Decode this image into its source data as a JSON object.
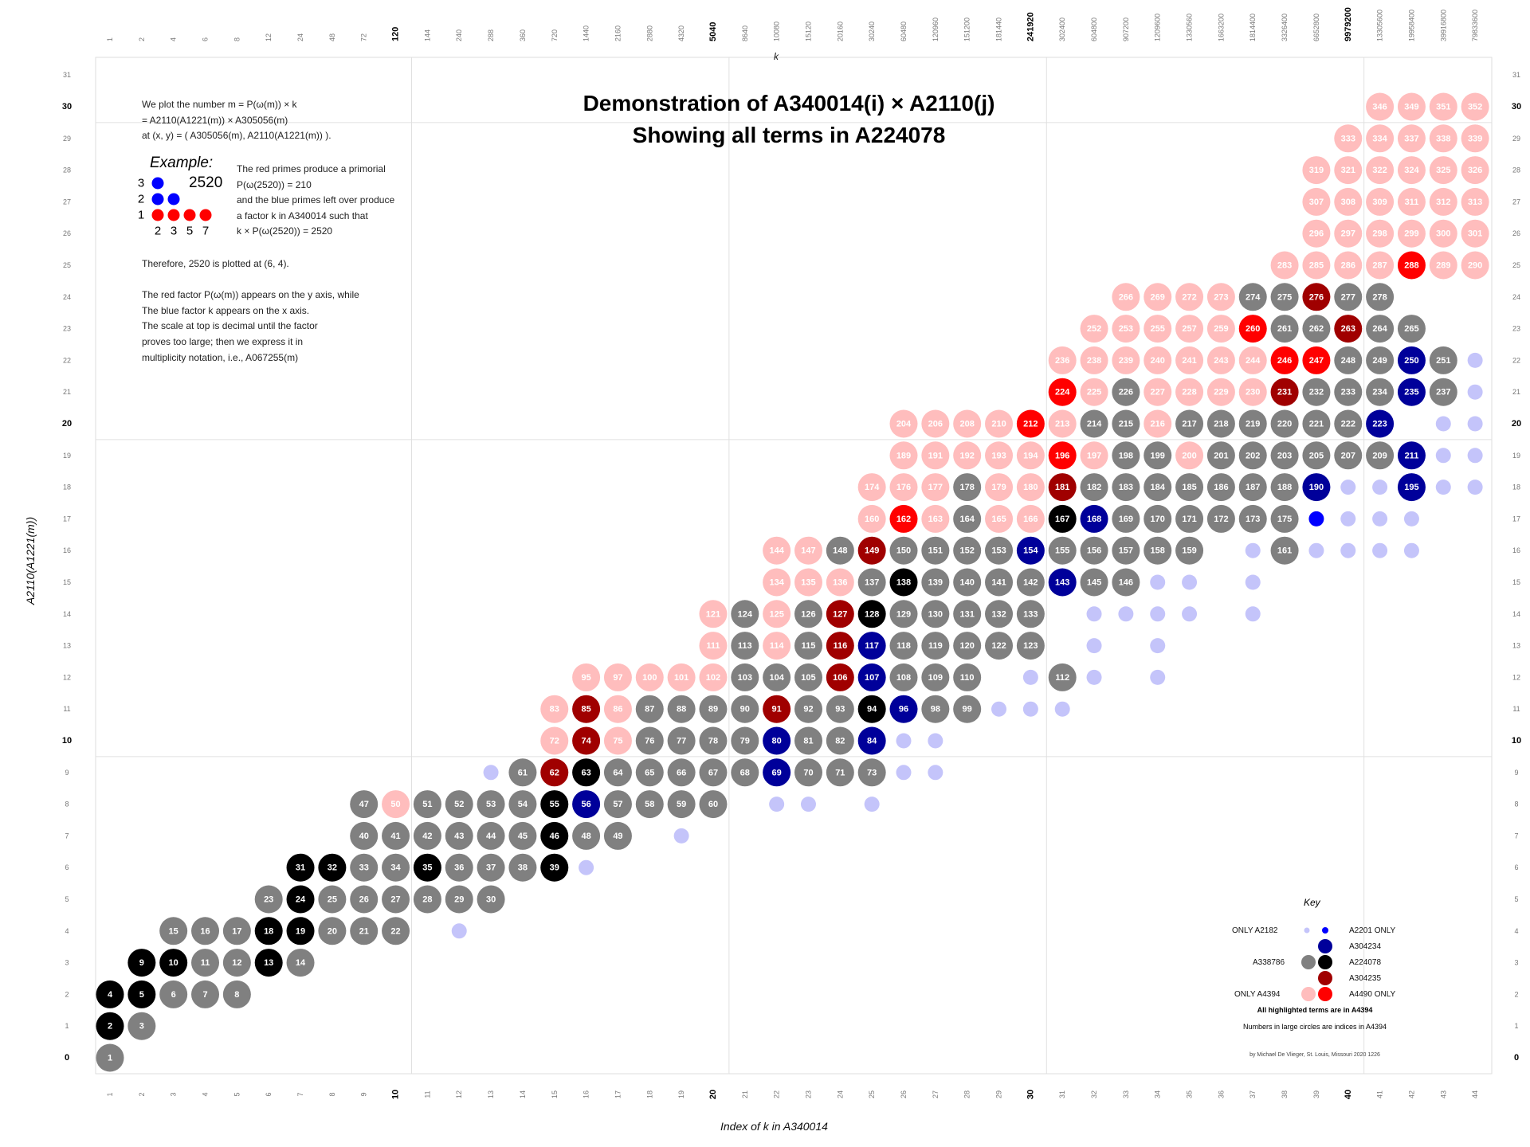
{
  "chart_data": {
    "type": "scatter",
    "title": "Demonstration of A340014(i) × A2110(j)",
    "subtitle": "Showing all terms in A224078",
    "xlabel": "Index of k in A340014",
    "ylabel": "A2110(A1221(m))",
    "top_axis_label": "k",
    "xlim": [
      1,
      44
    ],
    "ylim": [
      0,
      31
    ],
    "grid": true,
    "major_x": [
      10,
      20,
      30,
      40
    ],
    "major_y": [
      10,
      20,
      30
    ],
    "bottom_ticks": [
      "1",
      "2",
      "3",
      "4",
      "5",
      "6",
      "7",
      "8",
      "9",
      "10",
      "11",
      "12",
      "13",
      "14",
      "15",
      "16",
      "17",
      "18",
      "19",
      "20",
      "21",
      "22",
      "23",
      "24",
      "25",
      "26",
      "27",
      "28",
      "29",
      "30",
      "31",
      "32",
      "33",
      "34",
      "35",
      "36",
      "37",
      "38",
      "39",
      "40",
      "41",
      "42",
      "43",
      "44"
    ],
    "top_ticks": [
      "1",
      "2",
      "4",
      "6",
      "8",
      "12",
      "24",
      "48",
      "72",
      "120",
      "144",
      "240",
      "288",
      "360",
      "720",
      "1440",
      "2160",
      "2880",
      "4320",
      "5040",
      "8640",
      "10080",
      "15120",
      "20160",
      "30240",
      "60480",
      "120960",
      "151200",
      "181440",
      "241920",
      "302400",
      "604800",
      "907200",
      "1209600",
      "1330560",
      "1663200",
      "1814400",
      "3326400",
      "6652800",
      "9979200",
      "13305600",
      "19958400",
      "39916800",
      "79833600"
    ],
    "left_ticks": [
      "0",
      "1",
      "2",
      "3",
      "4",
      "5",
      "6",
      "7",
      "8",
      "9",
      "10",
      "11",
      "12",
      "13",
      "14",
      "15",
      "16",
      "17",
      "18",
      "19",
      "20",
      "21",
      "22",
      "23",
      "24",
      "25",
      "26",
      "27",
      "28",
      "29",
      "30",
      "31"
    ],
    "right_ticks": [
      "0",
      "1",
      "2",
      "3",
      "4",
      "5",
      "6",
      "7",
      "8",
      "9",
      "10",
      "11",
      "12",
      "13",
      "14",
      "15",
      "16",
      "17",
      "18",
      "19",
      "20",
      "21",
      "22",
      "23",
      "24",
      "25",
      "26",
      "27",
      "28",
      "29",
      "30",
      "31"
    ],
    "colors": {
      "G": "#808080",
      "K": "#000000",
      "N": "#00009a",
      "D": "#a00000",
      "R": "#ff0000",
      "P": "#ffbdbd",
      "L": "#c4c4fa",
      "B": "#0000ff"
    },
    "rows": [
      [
        0,
        "1:G"
      ],
      [
        1,
        "2:K 3:G"
      ],
      [
        2,
        "4:K 5:K 6:G 7:G 8:G"
      ],
      [
        3,
        "9:K 10:K 11:G 12:G 13:K 14:G"
      ],
      [
        4,
        "15:G 16:G 17:G 18:K 19:K 20:G 21:G 22:G ~12:L"
      ],
      [
        5,
        "23:G 24:K 25:G 26:G 27:G 28:G 29:G 30:G"
      ],
      [
        6,
        "31:K 32:K 33:G 34:G 35:K 36:G 37:G 38:G 39:K ~16:L"
      ],
      [
        7,
        "40:G 41:G 42:G 43:G 44:G 45:G 46:K 48:G 49:G ~19:L"
      ],
      [
        8,
        "47:G 50:P 51:G 52:G 53:G 54:G 55:K 56:N 57:G 58:G 59:G 60:G ~22:L ~23:L ~25:L"
      ],
      [
        9,
        "~13:L 61:G 62:D 63:K 64:G 65:G 66:G 67:G 68:G 69:N 70:G 71:G 73:G ~26:L ~27:L"
      ],
      [
        10,
        "72:P 74:D 75:P 76:G 77:G 78:G 79:G 80:N 81:G 82:G 84:N ~26:L ~27:L"
      ],
      [
        11,
        "83:P 85:D 86:P 87:G 88:G 89:G 90:G 91:D 92:G 93:G 94:K 96:N 98:G 99:G ~29:L ~30:L ~31:L"
      ],
      [
        12,
        "95:P 97:P 100:P 101:P 102:P 103:G 104:G 105:G 106:D 107:N 108:G 109:G 110:G ~30:L 112:G ~32:L ~34:L"
      ],
      [
        13,
        "111:P 113:G 114:P 115:G 116:D 117:N 118:G 119:G 120:G 122:G 123:G ~32:L ~34:L"
      ],
      [
        14,
        "121:P 124:G 125:P 126:G 127:D 128:K 129:G 130:G 131:G 132:G 133:G ~32:L ~33:L ~34:L ~35:L ~37:L"
      ],
      [
        15,
        "134:P 135:P 136:P 137:G 138:K 139:G 140:G 141:G 142:G 143:N 145:G 146:G ~34:L ~35:L ~37:L"
      ],
      [
        16,
        "144:P 147:P 148:G 149:D 150:G 151:G 152:G 153:G 154:N 155:G 156:G 157:G 158:G 159:G ~37:L 161:G ~39:L ~40:L ~41:L ~42:L"
      ],
      [
        17,
        "160:P 162:R 163:P 164:G 165:P 166:P 167:K 168:N 169:G 170:G 171:G 172:G 173:G 175:G ~39:B ~40:L ~41:L ~42:L"
      ],
      [
        18,
        "174:P 176:P 177:P 178:G 179:P 180:P 181:D 182:G 183:G 184:G 185:G 186:G 187:G 188:G 190:N ~40:L ~41:L 195:N ~43:L ~44:L"
      ],
      [
        19,
        "189:P 191:P 192:P 193:P 194:P 196:R 197:P 198:G 199:G 200:P 201:G 202:G 203:G 205:G 207:G 209:G 211:N ~43:L ~44:L"
      ],
      [
        20,
        "204:P 206:P 208:P 210:P 212:R 213:P 214:G 215:G 216:P 217:G 218:G 219:G 220:G 221:G 222:G 223:N ~43:L ~44:L"
      ],
      [
        21,
        "224:R 225:P 226:G 227:P 228:P 229:P 230:P 231:D 232:G 233:G 234:G 235:N 237:G ~44:L"
      ],
      [
        22,
        "236:P 238:P 239:P 240:P 241:P 243:P 244:P 246:R 247:R 248:G 249:G 250:N 251:G ~44:L"
      ],
      [
        23,
        "252:P 253:P 255:P 257:P 259:P 260:R 261:G 262:G 263:D 264:G 265:G"
      ],
      [
        24,
        "266:P 269:P 272:P 273:P 274:G 275:G 276:D 277:G 278:G"
      ],
      [
        25,
        "283:P 285:P 286:P 287:P 288:R 289:P 290:P"
      ],
      [
        26,
        "296:P 297:P 298:P 299:P 300:P 301:P"
      ],
      [
        27,
        "307:P 308:P 309:P 311:P 312:P 313:P"
      ],
      [
        28,
        "319:P 321:P 322:P 324:P 325:P 326:P"
      ],
      [
        29,
        "333:P 334:P 337:P 338:P 339:P"
      ],
      [
        30,
        "346:P 349:P 351:P 352:P"
      ]
    ],
    "row_start_col": {
      "0": 1,
      "1": 1,
      "2": 1,
      "3": 2,
      "4": 3,
      "5": 6,
      "6": 7,
      "7": 9,
      "8": 9,
      "9": 13,
      "10": 15,
      "11": 15,
      "12": 16,
      "13": 20,
      "14": 20,
      "15": 22,
      "16": 22,
      "17": 25,
      "18": 25,
      "19": 26,
      "20": 26,
      "21": 31,
      "22": 31,
      "23": 32,
      "24": 33,
      "25": 38,
      "26": 39,
      "27": 39,
      "28": 39,
      "29": 40,
      "30": 41
    },
    "legend": {
      "title": "Key",
      "only_a2182": "ONLY A2182",
      "a2201_only": "A2201 ONLY",
      "a304234": "A304234",
      "a338786": "A338786",
      "a224078": "A224078",
      "a304235": "A304235",
      "only_a4394": "ONLY A4394",
      "a4490_only": "A4490 ONLY",
      "note1": "All highlighted terms are in A4394",
      "note2": "Numbers in large circles are indices in A4394"
    }
  },
  "notes": {
    "intro_1": "We plot the number m = P(ω(m)) × k",
    "intro_2": "= A2110(A1221(m)) × A305056(m)",
    "intro_3": "at (x, y) = ( A305056(m), A2110(A1221(m)) ).",
    "example_title": "Example:",
    "example_number": "2520",
    "example_rows": [
      "3",
      "2",
      "1"
    ],
    "example_primes": [
      "2",
      "3",
      "5",
      "7"
    ],
    "example_text_1": "The red primes produce a primorial",
    "example_text_2": "P(ω(2520)) = 210",
    "example_text_3": "and the blue primes left over produce",
    "example_text_4": "a factor k in A340014 such that",
    "example_text_5": "k × P(ω(2520)) = 2520",
    "therefore": "Therefore, 2520 is plotted at (6, 4).",
    "axes_1": "The red factor P(ω(m)) appears on the y axis, while",
    "axes_2": "The blue factor k appears on the x axis.",
    "axes_3": "The scale at top is decimal until the factor",
    "axes_4": "proves too large; then we express it in",
    "axes_5": "multiplicity notation, i.e., A067255(m)"
  },
  "credit": "by Michael De Vlieger, St. Louis, Missouri 2020 1226"
}
